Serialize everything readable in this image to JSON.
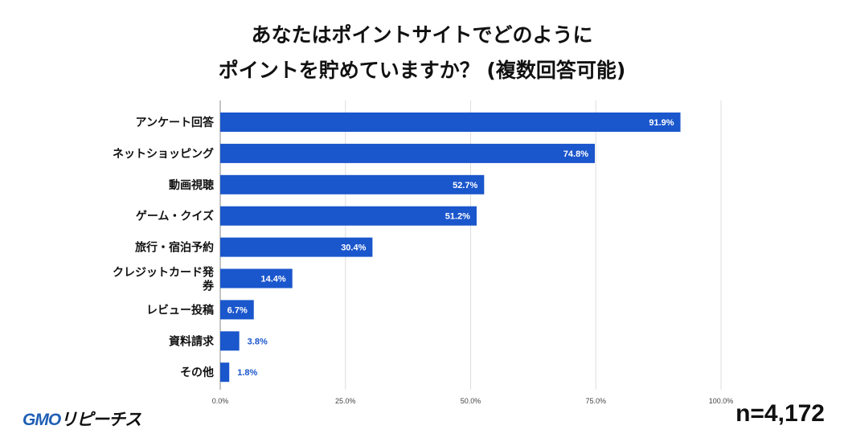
{
  "title_lines": [
    "あなたはポイントサイトでどのように",
    "ポイントを貯めていますか？ (複数回答可能)"
  ],
  "logo": {
    "main": "GMO",
    "sub": "リピーチス"
  },
  "sample_size": "n=4,172",
  "colors": {
    "bar": "#1a56cc",
    "label_inside": "#ffffff",
    "label_outside": "#1a56cc",
    "grid": "#dddddd"
  },
  "chart_data": {
    "type": "bar",
    "orientation": "horizontal",
    "categories": [
      "アンケート回答",
      "ネットショッピング",
      "動画視聴",
      "ゲーム・クイズ",
      "旅行・宿泊予約",
      "クレジットカード発券",
      "レビュー投稿",
      "資料請求",
      "その他"
    ],
    "values": [
      91.9,
      74.8,
      52.7,
      51.2,
      30.4,
      14.4,
      6.7,
      3.8,
      1.8
    ],
    "data_labels": [
      "91.9%",
      "74.8%",
      "52.7%",
      "51.2%",
      "30.4%",
      "14.4%",
      "6.7%",
      "3.8%",
      "1.8%"
    ],
    "xlim": [
      0,
      100
    ],
    "xticks": [
      0,
      25,
      50,
      75,
      100
    ],
    "xtick_labels": [
      "0.0%",
      "25.0%",
      "50.0%",
      "75.0%",
      "100.0%"
    ],
    "grid": true
  }
}
